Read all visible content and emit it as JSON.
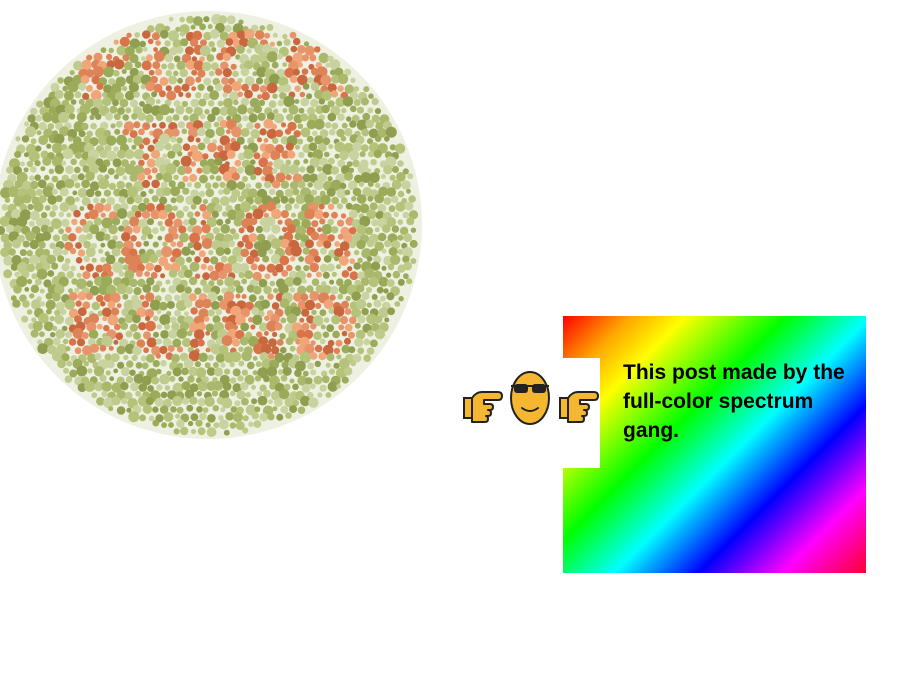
{
  "plate": {
    "hidden_text_lines": [
      "FUCK",
      "THE",
      "COLOR",
      "BLIND"
    ],
    "background_dot_colors": [
      "#a9b86a",
      "#bfcb8d",
      "#9aab5a",
      "#c8d3a0",
      "#8f9f4f",
      "#b5c37a"
    ],
    "text_dot_colors": [
      "#d9744a",
      "#e8946a",
      "#c9673e",
      "#f0a679",
      "#de8358"
    ]
  },
  "emoji": {
    "left_icon": "pointing-right-hand-icon",
    "center_icon": "sunglasses-face-icon",
    "right_icon": "pointing-right-hand-icon"
  },
  "caption": {
    "text": "This post made by the full-color spectrum gang."
  }
}
